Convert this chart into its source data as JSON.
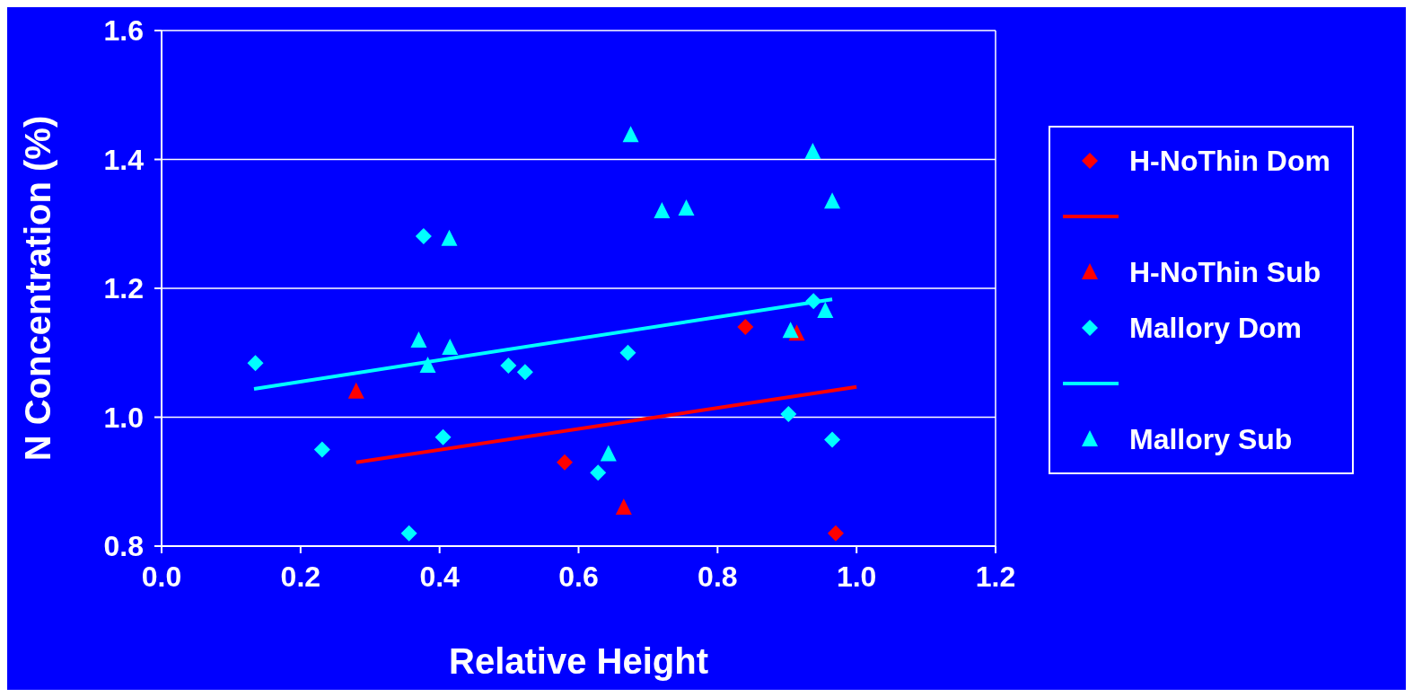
{
  "chart_data": {
    "type": "scatter",
    "xlabel": "Relative Height",
    "ylabel": "N Concentration (%)",
    "xlim": [
      0,
      1.2
    ],
    "xticks": [
      {
        "value": 0,
        "label": "0.0"
      },
      0.2,
      0.4,
      0.6,
      0.8,
      {
        "value": 1,
        "label": "1.0"
      },
      1.2
    ],
    "ylim": [
      0.8,
      1.6
    ],
    "yticks": [
      0.8,
      {
        "value": 1,
        "label": "1.0"
      },
      1.2,
      1.4,
      1.6
    ],
    "grid": "y",
    "legend": "right",
    "series": [
      {
        "name": "H-NoThin Dom",
        "color": "#ff0000",
        "marker": "diamond",
        "x": [
          0.58,
          0.84,
          0.97
        ],
        "values": [
          0.93,
          1.14,
          0.82
        ]
      },
      {
        "type": "line",
        "color": "#ff0000",
        "marker": "none",
        "x": [
          0.28,
          1.0
        ],
        "values": [
          0.93,
          1.047
        ]
      },
      {
        "name": "H-NoThin Sub",
        "color": "#ff0000",
        "marker": "triangle",
        "x": [
          0.28,
          0.665,
          0.914
        ],
        "values": [
          1.04,
          0.86,
          1.13
        ]
      },
      {
        "name": "Mallory Dom",
        "color": "#00ffff",
        "marker": "diamond",
        "x": [
          0.135,
          0.231,
          0.356,
          0.377,
          0.405,
          0.499,
          0.523,
          0.628,
          0.671,
          0.902,
          0.938,
          0.965
        ],
        "values": [
          1.084,
          0.95,
          0.82,
          1.281,
          0.969,
          1.08,
          1.07,
          0.914,
          1.1,
          1.005,
          1.18,
          0.965
        ]
      },
      {
        "type": "line",
        "color": "#00ffff",
        "marker": "none",
        "x": [
          0.133,
          0.965
        ],
        "values": [
          1.044,
          1.183
        ]
      },
      {
        "name": "Mallory Sub",
        "color": "#00ffff",
        "marker": "triangle",
        "x": [
          0.37,
          0.383,
          0.414,
          0.415,
          0.643,
          0.675,
          0.72,
          0.755,
          0.905,
          0.937,
          0.955,
          0.965
        ],
        "values": [
          1.119,
          1.08,
          1.277,
          1.108,
          0.943,
          1.438,
          1.32,
          1.324,
          1.134,
          1.412,
          1.165,
          1.335
        ]
      }
    ]
  }
}
